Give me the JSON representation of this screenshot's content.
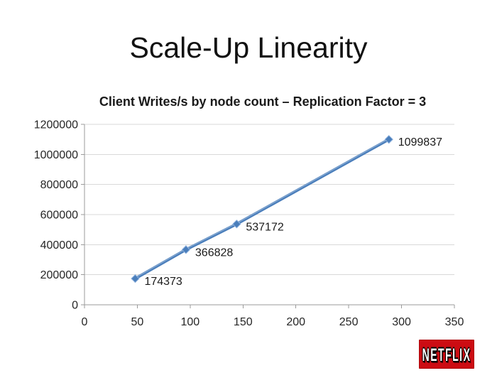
{
  "slide": {
    "title": "Scale-Up Linearity"
  },
  "chart_data": {
    "type": "line",
    "title": "Client Writes/s by node count – Replication Factor = 3",
    "x": [
      48,
      96,
      144,
      288
    ],
    "values": [
      174373,
      366828,
      537172,
      1099837
    ],
    "point_labels": [
      "174373",
      "366828",
      "537172",
      "1099837"
    ],
    "xlim": [
      0,
      350
    ],
    "ylim": [
      0,
      1200000
    ],
    "x_ticks": [
      0,
      50,
      100,
      150,
      200,
      250,
      300,
      350
    ],
    "y_ticks": [
      0,
      200000,
      400000,
      600000,
      800000,
      1000000,
      1200000
    ],
    "xlabel": "",
    "ylabel": "",
    "grid": "horizontal",
    "legend": "none",
    "line_color": "#4A7EBB",
    "marker": "diamond",
    "gridline_color": "#D9D9D9",
    "axis_color": "#9B9B9B"
  },
  "logo": {
    "text": "NETFLIX",
    "bg_color": "#CC0C13",
    "text_color": "#FFFFFF"
  }
}
